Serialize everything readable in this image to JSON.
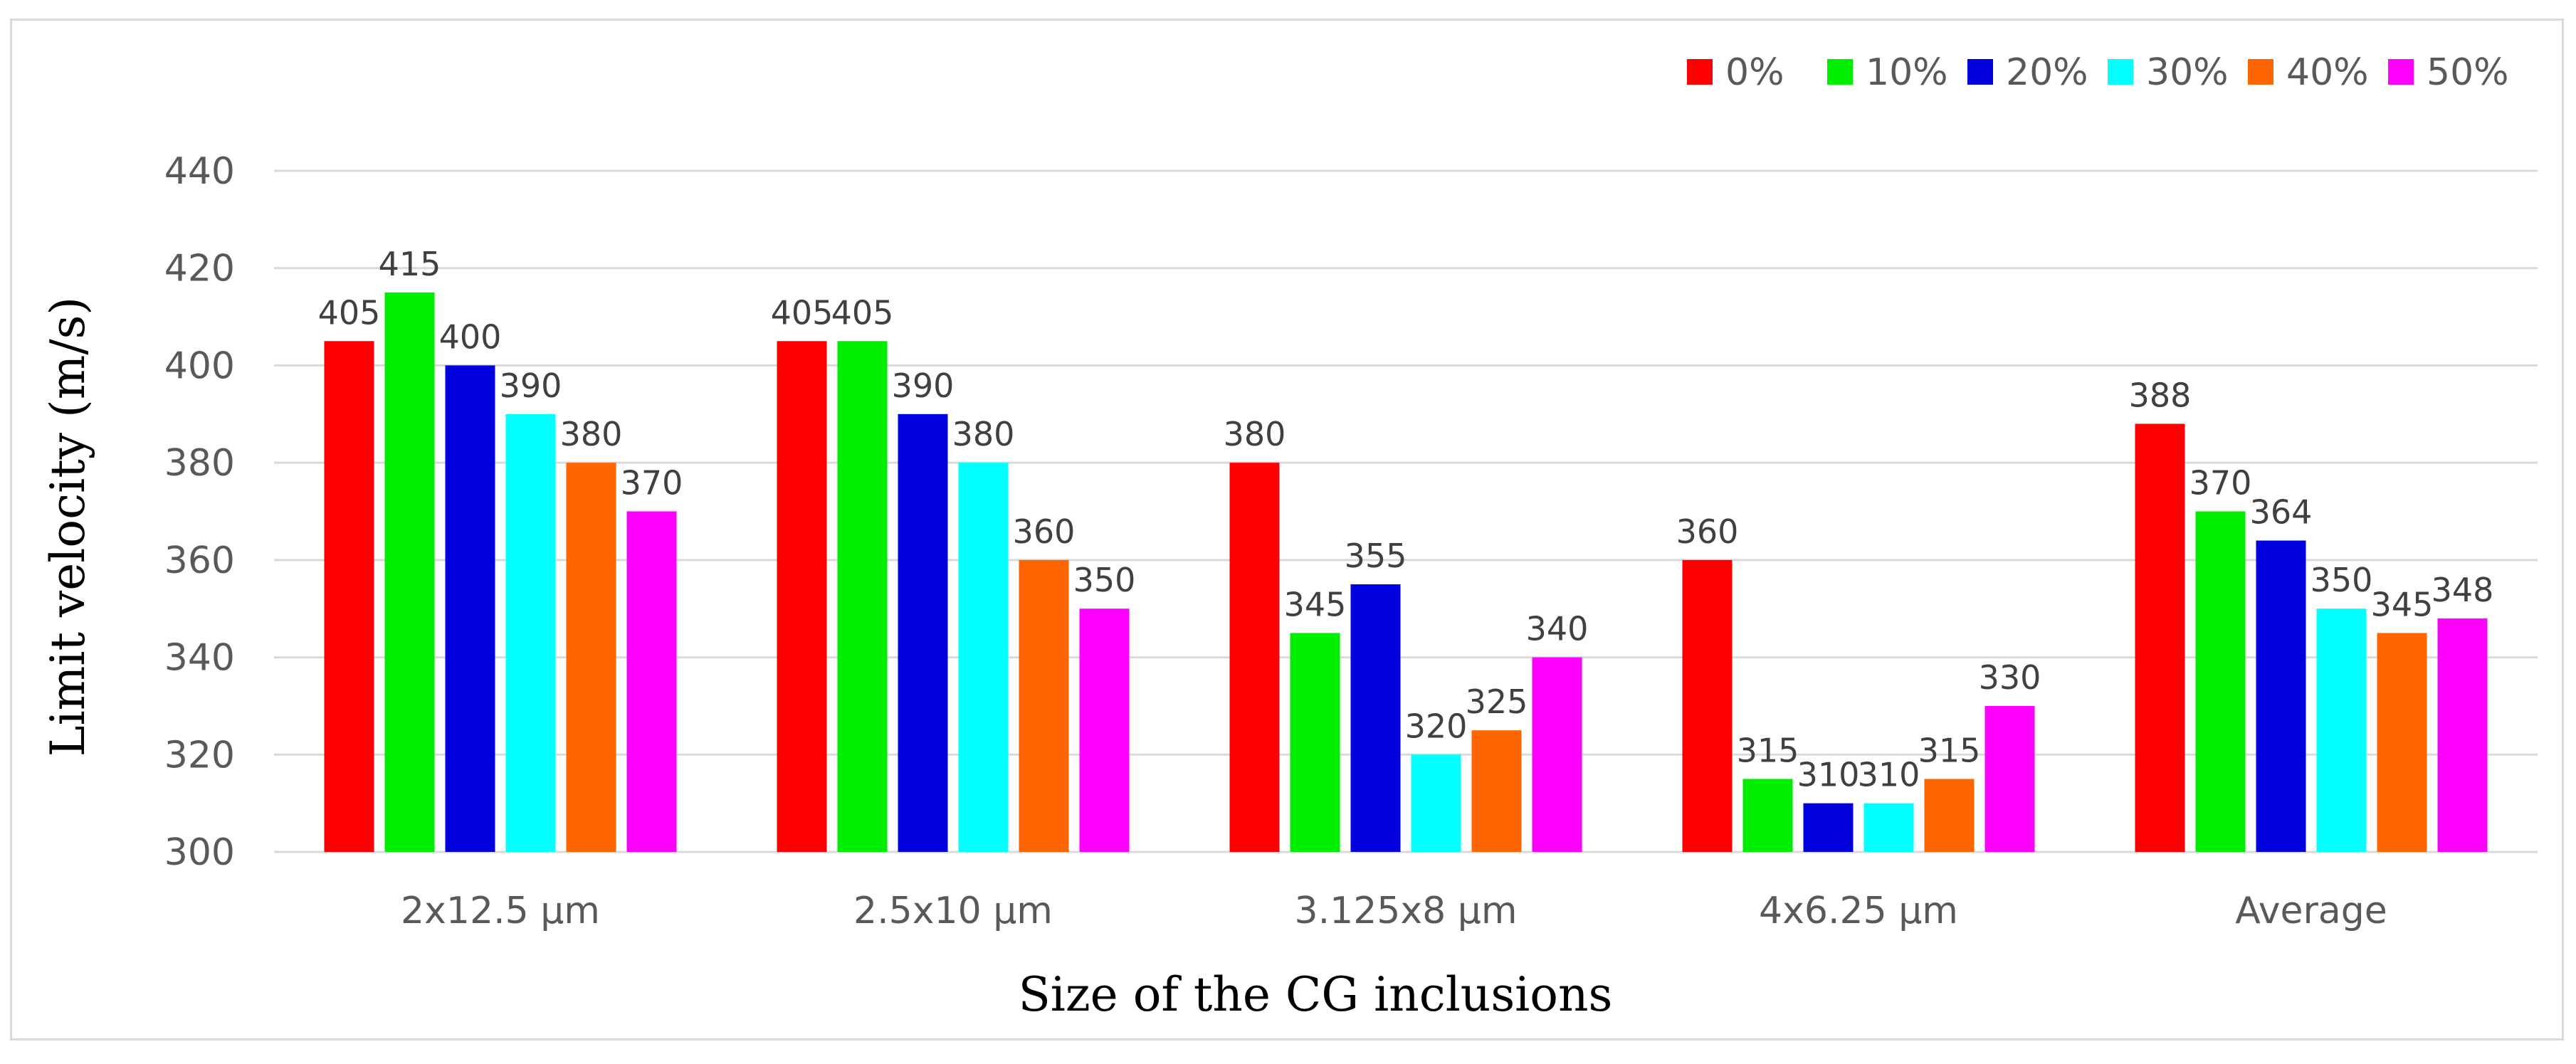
{
  "chart_data": {
    "type": "bar",
    "title": "",
    "xlabel": "Size of the CG inclusions",
    "ylabel": "Limit velocity (m/s)",
    "ylim": [
      300,
      440
    ],
    "yticks": [
      300,
      320,
      340,
      360,
      380,
      400,
      420,
      440
    ],
    "grid": true,
    "legend_position": "top-right",
    "categories": [
      "2x12.5 µm",
      "2.5x10 µm",
      "3.125x8 µm",
      "4x6.25 µm",
      "Average"
    ],
    "series": [
      {
        "name": "0%",
        "color": "#ff0000",
        "values": [
          405,
          405,
          380,
          360,
          388
        ]
      },
      {
        "name": "10%",
        "color": "#00ee00",
        "values": [
          415,
          405,
          345,
          315,
          370
        ]
      },
      {
        "name": "20%",
        "color": "#0000dd",
        "values": [
          400,
          390,
          355,
          310,
          364
        ]
      },
      {
        "name": "30%",
        "color": "#00ffff",
        "values": [
          390,
          380,
          320,
          310,
          350
        ]
      },
      {
        "name": "40%",
        "color": "#ff6600",
        "values": [
          380,
          360,
          325,
          315,
          345
        ]
      },
      {
        "name": "50%",
        "color": "#ff00ff",
        "values": [
          370,
          350,
          340,
          330,
          348
        ]
      }
    ]
  }
}
